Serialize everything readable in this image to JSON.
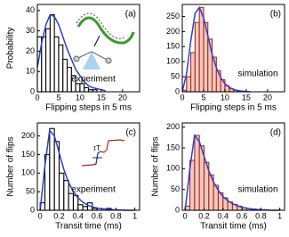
{
  "chart_data": [
    {
      "type": "histogram",
      "panel": "(a)",
      "xlabel": "Flipping steps in 5 ms",
      "ylabel": "Probability",
      "annotation": "experiment",
      "annotation_color": "#000000",
      "bins": [
        0,
        1,
        2,
        3,
        4,
        5,
        6,
        7,
        8,
        9,
        10,
        11,
        12,
        13,
        14
      ],
      "values": [
        27,
        27,
        31,
        38,
        27,
        23,
        16,
        12,
        8,
        4,
        4,
        2,
        1,
        1
      ],
      "color": "#000000",
      "fill": "#ffffff",
      "fit": {
        "color": "#2a3fd0",
        "x": [
          0,
          1,
          2,
          3,
          4,
          5,
          6,
          7,
          8,
          9,
          10,
          11,
          12,
          13,
          14,
          15,
          16
        ],
        "values": [
          12,
          24,
          33,
          38,
          37,
          33,
          27,
          21,
          16,
          11,
          8,
          5,
          3,
          2,
          1.5,
          1,
          0.5
        ]
      },
      "xlim": [
        0,
        24
      ],
      "ylim": [
        0,
        43
      ],
      "xticks": [
        0,
        5,
        10,
        15,
        20
      ],
      "yticks": [
        0,
        10,
        20,
        30,
        40
      ]
    },
    {
      "type": "histogram",
      "panel": "(b)",
      "xlabel": "Flipping steps in 5 ms",
      "ylabel": "",
      "annotation": "simulation",
      "annotation_color": "#b02a1a",
      "bins": [
        0,
        1,
        2,
        3,
        4,
        5,
        6,
        7,
        8,
        9,
        10,
        11,
        12,
        13,
        14
      ],
      "values": [
        5,
        50,
        130,
        230,
        280,
        230,
        175,
        115,
        70,
        40,
        20,
        10,
        5,
        2
      ],
      "color": "#b02a1a",
      "fill": "#efc9c0",
      "fit": {
        "color": "#2a3fd0",
        "x": [
          0,
          1,
          2,
          3,
          4,
          5,
          6,
          7,
          8,
          9,
          10,
          11,
          12,
          13,
          14,
          15,
          16
        ],
        "values": [
          0,
          60,
          170,
          260,
          280,
          245,
          185,
          125,
          80,
          48,
          27,
          15,
          8,
          4,
          2,
          1,
          0
        ]
      },
      "xlim": [
        0,
        24
      ],
      "ylim": [
        0,
        290
      ],
      "xticks": [
        0,
        5,
        10,
        15,
        20
      ],
      "yticks": [
        0,
        50,
        100,
        150,
        200,
        250
      ]
    },
    {
      "type": "histogram",
      "panel": "(c)",
      "xlabel": "Transit time (ms)",
      "ylabel": "Number of flips",
      "annotation": "experiment",
      "annotation_color": "#000000",
      "inset_label": "τT",
      "bins": [
        0,
        0.05,
        0.1,
        0.15,
        0.2,
        0.25,
        0.3,
        0.35,
        0.4,
        0.45,
        0.5,
        0.55,
        0.6,
        0.65,
        0.7,
        0.75
      ],
      "values": [
        20,
        150,
        220,
        185,
        100,
        80,
        45,
        40,
        15,
        10,
        20,
        5,
        5,
        0,
        5
      ],
      "color": "#000000",
      "fill": "#ffffff",
      "fit": {
        "color": "#2a3fd0",
        "x": [
          0,
          0.05,
          0.1,
          0.15,
          0.2,
          0.25,
          0.3,
          0.35,
          0.4,
          0.45,
          0.5,
          0.55,
          0.6,
          0.65,
          0.7,
          0.75,
          0.8,
          0.85,
          0.9,
          0.95,
          1
        ],
        "values": [
          0,
          120,
          215,
          200,
          155,
          110,
          75,
          50,
          33,
          22,
          14,
          9,
          6,
          4,
          3,
          2,
          1,
          1,
          0,
          0,
          0
        ]
      },
      "xlim": [
        -0.03,
        1.05
      ],
      "ylim": [
        0,
        235
      ],
      "xticks": [
        0,
        0.2,
        0.4,
        0.6,
        0.8,
        1
      ],
      "yticks": [
        0,
        50,
        100,
        150,
        200
      ]
    },
    {
      "type": "histogram",
      "panel": "(d)",
      "xlabel": "Transit time (ms)",
      "ylabel": "Number of flips",
      "annotation": "simulation",
      "annotation_color": "#b02a1a",
      "bins": [
        0,
        0.05,
        0.1,
        0.15,
        0.2,
        0.25,
        0.3,
        0.35,
        0.4,
        0.45,
        0.5,
        0.55,
        0.6,
        0.65,
        0.7,
        0.75,
        0.8
      ],
      "values": [
        10,
        120,
        180,
        155,
        115,
        85,
        60,
        42,
        30,
        20,
        14,
        10,
        6,
        4,
        3,
        2
      ],
      "color": "#b02a1a",
      "fill": "#efc9c0",
      "fit": {
        "color": "#2a3fd0",
        "x": [
          0,
          0.05,
          0.1,
          0.15,
          0.2,
          0.25,
          0.3,
          0.35,
          0.4,
          0.45,
          0.5,
          0.55,
          0.6,
          0.65,
          0.7,
          0.75,
          0.8,
          0.85,
          0.9,
          0.95,
          1
        ],
        "values": [
          0,
          100,
          180,
          165,
          130,
          95,
          68,
          48,
          33,
          23,
          16,
          11,
          7,
          5,
          3,
          2,
          1,
          1,
          0,
          0,
          0
        ]
      },
      "xlim": [
        -0.03,
        1.05
      ],
      "ylim": [
        0,
        210
      ],
      "xticks": [
        0,
        0.2,
        0.4,
        0.6,
        0.8,
        1
      ],
      "yticks": [
        0,
        50,
        100,
        150,
        200
      ]
    }
  ]
}
